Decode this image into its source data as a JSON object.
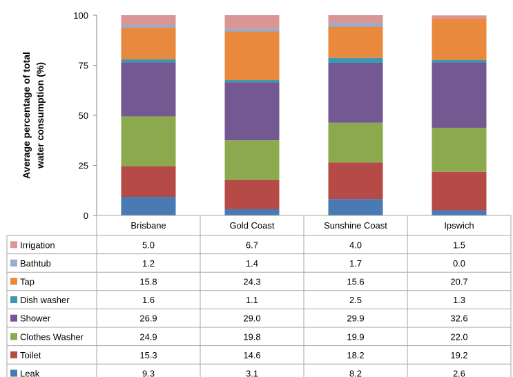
{
  "chart_data": {
    "type": "bar",
    "stacked": true,
    "ylabel_line1": "Average percentage of total",
    "ylabel_line2": "water consumption (%)",
    "ylim": [
      0,
      100
    ],
    "yticks": [
      "0",
      "25",
      "50",
      "75",
      "100"
    ],
    "categories": [
      "Brisbane",
      "Gold Coast",
      "Sunshine Coast",
      "Ipswich"
    ],
    "series": [
      {
        "name": "Leak",
        "color": "#4a7ab3",
        "values": [
          "9.3",
          "3.1",
          "8.2",
          "2.6"
        ]
      },
      {
        "name": "Toilet",
        "color": "#b54a47",
        "values": [
          "15.3",
          "14.6",
          "18.2",
          "19.2"
        ]
      },
      {
        "name": "Clothes Washer",
        "color": "#8caa4d",
        "values": [
          "24.9",
          "19.8",
          "19.9",
          "22.0"
        ]
      },
      {
        "name": "Shower",
        "color": "#735892",
        "values": [
          "26.9",
          "29.0",
          "29.9",
          "32.6"
        ]
      },
      {
        "name": "Dish washer",
        "color": "#3d97ae",
        "values": [
          "1.6",
          "1.1",
          "2.5",
          "1.3"
        ]
      },
      {
        "name": "Tap",
        "color": "#e8893d",
        "values": [
          "15.8",
          "24.3",
          "15.6",
          "20.7"
        ]
      },
      {
        "name": "Bathtub",
        "color": "#95add6",
        "values": [
          "1.2",
          "1.4",
          "1.7",
          "0.0"
        ]
      },
      {
        "name": "Irrigation",
        "color": "#d99694",
        "values": [
          "5.0",
          "6.7",
          "4.0",
          "1.5"
        ]
      }
    ],
    "grid": false,
    "legend": "data-table"
  }
}
